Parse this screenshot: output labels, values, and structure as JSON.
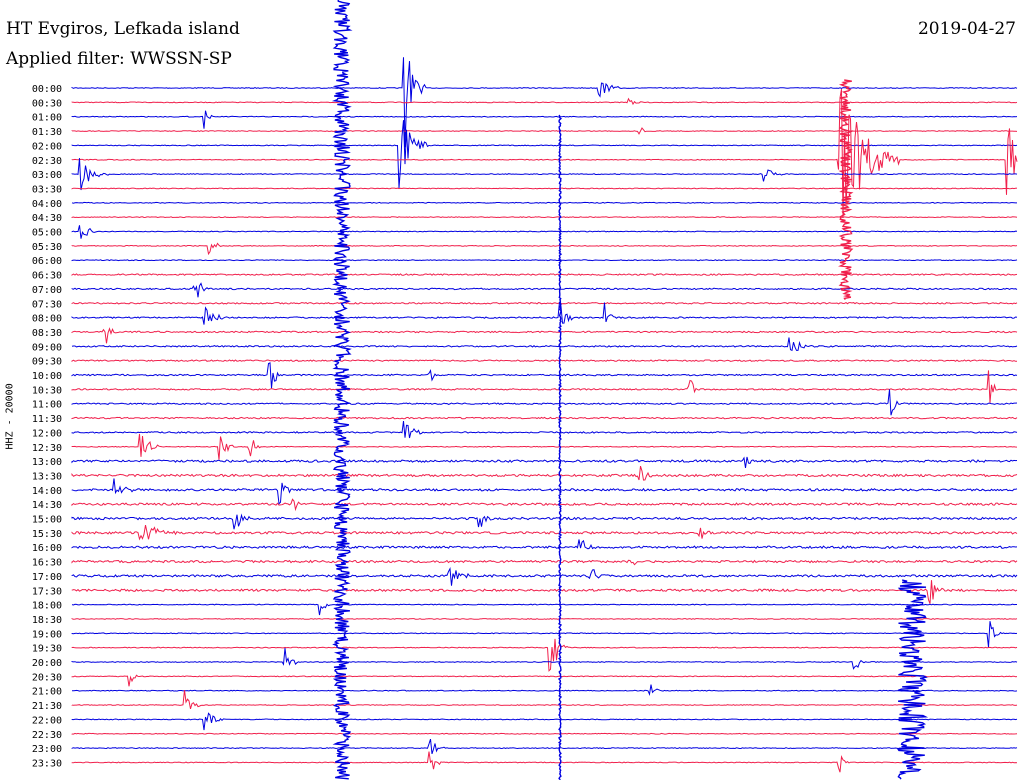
{
  "header": {
    "station": "HT Evgiros, Lefkada island",
    "filter": "Applied filter: WWSSN-SP",
    "date": "2019-04-27"
  },
  "channel_label": "HHZ - 20000",
  "colors": {
    "odd_trace": "#0000e0",
    "even_trace": "#f0204c",
    "background": "#ffffff"
  },
  "chart_data": {
    "type": "helicorder",
    "trace_colors_alternate": [
      "blue",
      "red"
    ],
    "row_labels": [
      "00:00",
      "00:30",
      "01:00",
      "01:30",
      "02:00",
      "02:30",
      "03:00",
      "03:30",
      "04:00",
      "04:30",
      "05:00",
      "05:30",
      "06:00",
      "06:30",
      "07:00",
      "07:30",
      "08:00",
      "08:30",
      "09:00",
      "09:30",
      "10:00",
      "10:30",
      "11:00",
      "11:30",
      "12:00",
      "12:30",
      "13:00",
      "13:30",
      "14:00",
      "14:30",
      "15:00",
      "15:30",
      "16:00",
      "16:30",
      "17:00",
      "17:30",
      "18:00",
      "18:30",
      "19:00",
      "19:30",
      "20:00",
      "20:30",
      "21:00",
      "21:30",
      "22:00",
      "22:30",
      "23:00",
      "23:30"
    ]
  }
}
